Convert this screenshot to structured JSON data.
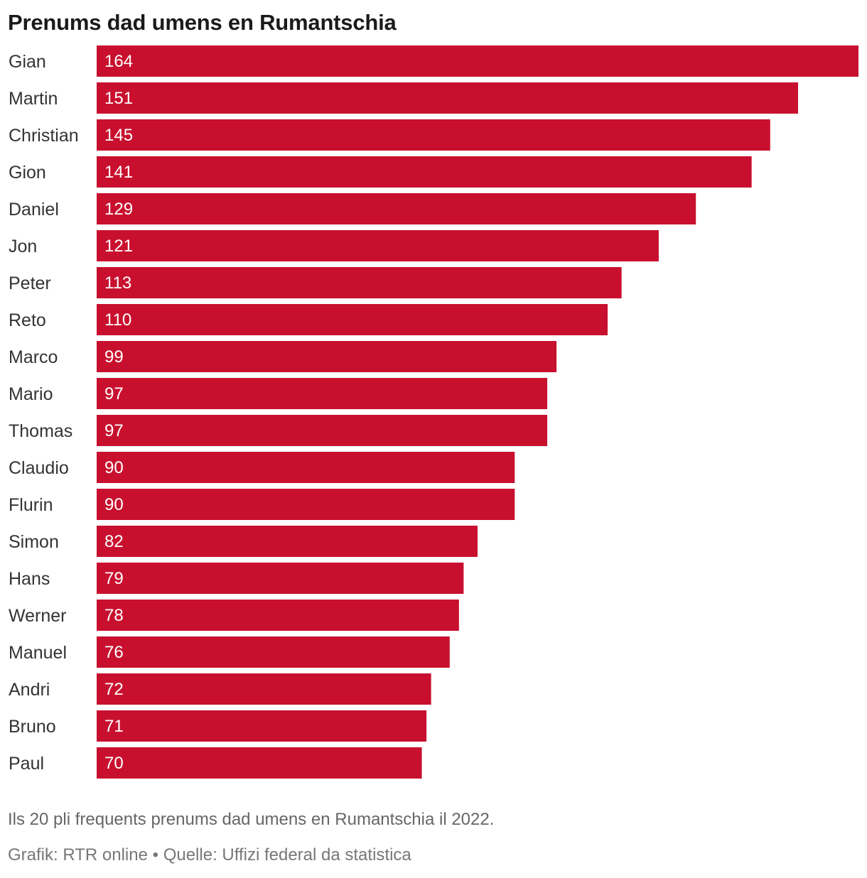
{
  "chart_data": {
    "type": "bar",
    "orientation": "horizontal",
    "title": "Prenums dad umens en Rumantschia",
    "categories": [
      "Gian",
      "Martin",
      "Christian",
      "Gion",
      "Daniel",
      "Jon",
      "Peter",
      "Reto",
      "Marco",
      "Mario",
      "Thomas",
      "Claudio",
      "Flurin",
      "Simon",
      "Hans",
      "Werner",
      "Manuel",
      "Andri",
      "Bruno",
      "Paul"
    ],
    "values": [
      164,
      151,
      145,
      141,
      129,
      121,
      113,
      110,
      99,
      97,
      97,
      90,
      90,
      82,
      79,
      78,
      76,
      72,
      71,
      70
    ],
    "xlim": [
      0,
      164
    ],
    "grid": false,
    "legend": "none",
    "bar_color": "#c8102e",
    "value_labels": "inside-left"
  },
  "note": "Ils 20 pli frequents prenums dad umens en Rumantschia il 2022.",
  "source": "Grafik: RTR online • Quelle: Uffizi federal da statistica"
}
